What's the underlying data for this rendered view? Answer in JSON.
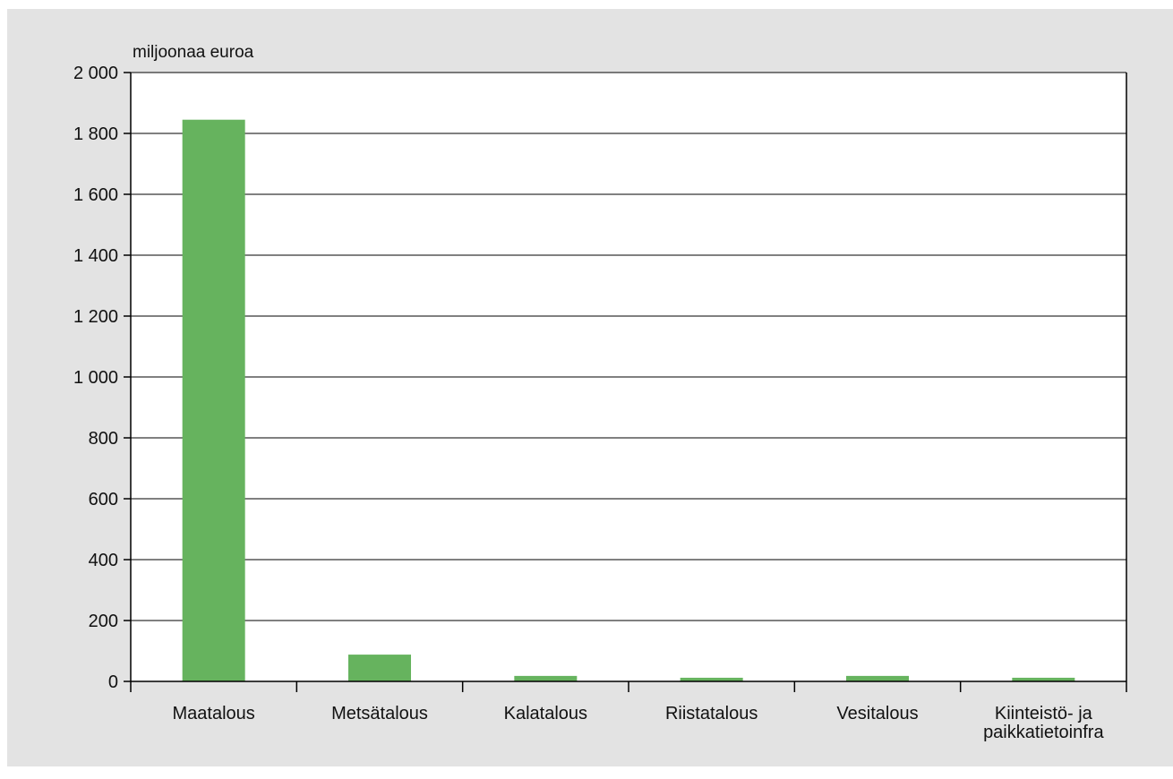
{
  "chart_data": {
    "type": "bar",
    "ylabel": "miljoonaa euroa",
    "categories": [
      [
        "Maatalous"
      ],
      [
        "Metsätalous"
      ],
      [
        "Kalatalous"
      ],
      [
        "Riistatalous"
      ],
      [
        "Vesitalous"
      ],
      [
        "Kiinteistö- ja",
        "paikkatietoinfra"
      ]
    ],
    "values": [
      1845,
      88,
      18,
      12,
      18,
      12
    ],
    "ylim": [
      0,
      2000
    ],
    "yticks": [
      0,
      200,
      400,
      600,
      800,
      1000,
      1200,
      1400,
      1600,
      1800,
      2000
    ],
    "ytick_labels": [
      "0",
      "200",
      "400",
      "600",
      "800",
      "1 000",
      "1 200",
      "1 400",
      "1 600",
      "1 800",
      "2 000"
    ],
    "grid": true,
    "colors": {
      "bar": "#66b35e",
      "background": "#e3e3e3",
      "plot": "#ffffff",
      "grid": "#000000"
    }
  }
}
